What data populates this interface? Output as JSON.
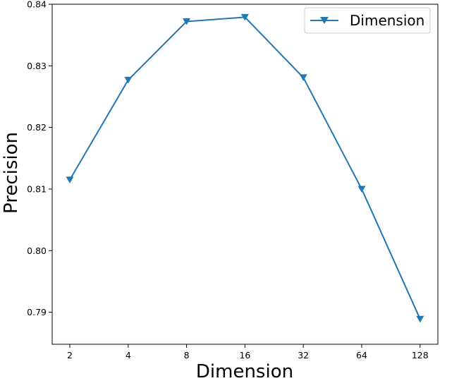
{
  "chart_data": {
    "type": "line",
    "title": "",
    "xlabel": "Dimension",
    "ylabel": "Precision",
    "categories": [
      "2",
      "4",
      "8",
      "16",
      "32",
      "64",
      "128"
    ],
    "series": [
      {
        "name": "Dimension",
        "values": [
          0.8115,
          0.8277,
          0.8372,
          0.8379,
          0.8281,
          0.81,
          0.7889
        ],
        "color": "#1f77b4",
        "marker": "triangle-down"
      }
    ],
    "y_ticks": [
      "0.79",
      "0.80",
      "0.81",
      "0.82",
      "0.83",
      "0.84"
    ],
    "y_tick_values": [
      0.79,
      0.8,
      0.81,
      0.82,
      0.83,
      0.84
    ],
    "ylim": [
      0.7848,
      0.84
    ],
    "grid": false,
    "legend_position": "top-right"
  }
}
